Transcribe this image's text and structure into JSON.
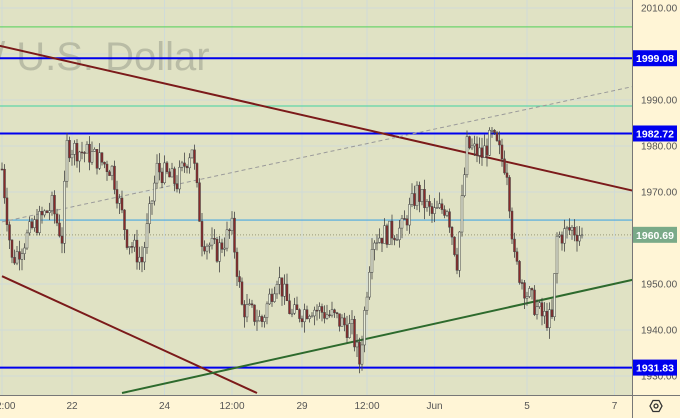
{
  "watermark": "/ U.S. Dollar",
  "colors": {
    "plot_bg": "#e0e2c4",
    "axis_bg": "#fff5d6",
    "blue": "#0000ee",
    "green_level": "#6dd46d",
    "teal_level": "#5fd6a8",
    "light_blue": "#4aa8e0",
    "dark_red": "#7b1a1a",
    "green_trend": "#2d6a2d",
    "dashed": "#9a9a9a",
    "tag_green": "#7aaa88"
  },
  "chart_data": {
    "type": "candlestick",
    "title": "/ U.S. Dollar",
    "ylim": [
      1928,
      2012
    ],
    "y_ticks": [
      "2010.00",
      "1990.00",
      "1980.00",
      "1970.00",
      "1950.00",
      "1940.00",
      "1930.00"
    ],
    "y_tick_values": [
      2010,
      1990,
      1980,
      1970,
      1950,
      1940,
      1930
    ],
    "x_ticks": [
      "2:00",
      "22",
      "24",
      "12:00",
      "29",
      "12:00",
      "Jun",
      "5",
      "7"
    ],
    "x_tick_index": [
      0,
      28,
      65,
      92,
      120,
      146,
      173,
      210,
      245
    ],
    "price_tags": [
      {
        "label": "1999.08",
        "value": 1999.08,
        "kind": "level"
      },
      {
        "label": "1982.72",
        "value": 1982.72,
        "kind": "level"
      },
      {
        "label": "1931.83",
        "value": 1931.83,
        "kind": "level"
      },
      {
        "label": "1960.69",
        "value": 1960.69,
        "kind": "last"
      }
    ],
    "horizontal_lines": [
      {
        "value": 2005.9,
        "kind": "green"
      },
      {
        "value": 1988.7,
        "kind": "teal"
      },
      {
        "value": 1963.9,
        "kind": "light-blue"
      }
    ],
    "trend_lines": [
      {
        "kind": "dark-red",
        "from": [
          -83,
          2012
        ],
        "to": [
          253,
          1970.2
        ]
      },
      {
        "kind": "dark-red",
        "from": [
          0,
          1951.7
        ],
        "to": [
          102,
          1926.3
        ]
      },
      {
        "kind": "green-trend",
        "from": [
          48,
          1926.3
        ],
        "to": [
          253,
          1951
        ]
      },
      {
        "kind": "dashed",
        "from": [
          0,
          1963.5
        ],
        "to": [
          253,
          1993
        ]
      }
    ],
    "x_range": [
      0,
      253
    ],
    "close_path": [
      [
        0,
        1975
      ],
      [
        4,
        1955
      ],
      [
        12,
        1962
      ],
      [
        20,
        1967
      ],
      [
        24,
        1960
      ],
      [
        26,
        1980
      ],
      [
        36,
        1978
      ],
      [
        44,
        1975
      ],
      [
        50,
        1960
      ],
      [
        56,
        1955
      ],
      [
        62,
        1975
      ],
      [
        70,
        1972
      ],
      [
        76,
        1980
      ],
      [
        80,
        1960
      ],
      [
        86,
        1957
      ],
      [
        92,
        1962
      ],
      [
        96,
        1945
      ],
      [
        104,
        1942
      ],
      [
        110,
        1952
      ],
      [
        116,
        1943
      ],
      [
        124,
        1945
      ],
      [
        132,
        1943
      ],
      [
        140,
        1940
      ],
      [
        143,
        1933
      ],
      [
        148,
        1960
      ],
      [
        160,
        1962
      ],
      [
        166,
        1970
      ],
      [
        172,
        1965
      ],
      [
        178,
        1967
      ],
      [
        182,
        1955
      ],
      [
        186,
        1980
      ],
      [
        192,
        1978
      ],
      [
        196,
        1982
      ],
      [
        202,
        1975
      ],
      [
        205,
        1955
      ],
      [
        210,
        1948
      ],
      [
        216,
        1943
      ],
      [
        220,
        1942
      ],
      [
        222,
        1960
      ],
      [
        228,
        1962
      ],
      [
        232,
        1960.69
      ]
    ]
  }
}
